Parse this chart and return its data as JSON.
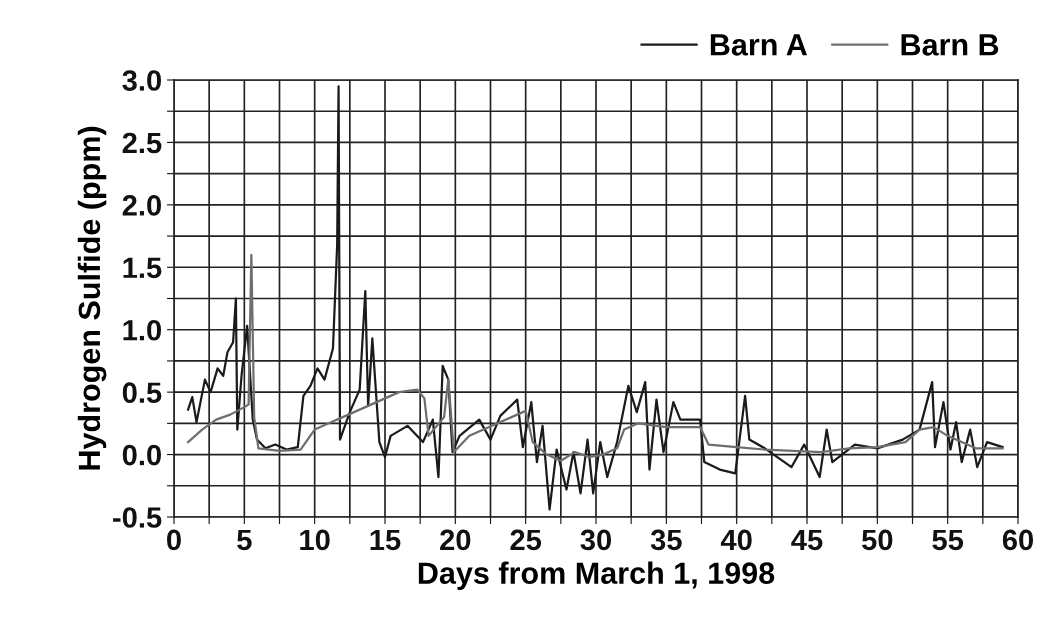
{
  "chart_data": {
    "type": "line",
    "xlabel": "Days from March 1, 1998",
    "ylabel": "Hydrogen Sulfide (ppm)",
    "xlim": [
      0,
      60
    ],
    "ylim": [
      -0.5,
      3.0
    ],
    "xticks": [
      0,
      {
        "value": 2.5,
        "label": null
      },
      5,
      {
        "value": 7.5,
        "label": null
      },
      10,
      {
        "value": 12.5,
        "label": null
      },
      15,
      {
        "value": 17.5,
        "label": null
      },
      20,
      {
        "value": 22.5,
        "label": null
      },
      25,
      {
        "value": 27.5,
        "label": null
      },
      30,
      {
        "value": 32.5,
        "label": null
      },
      35,
      {
        "value": 37.5,
        "label": null
      },
      40,
      {
        "value": 42.5,
        "label": null
      },
      45,
      {
        "value": 47.5,
        "label": null
      },
      50,
      {
        "value": 52.5,
        "label": null
      },
      55,
      {
        "value": 57.5,
        "label": null
      },
      60
    ],
    "yticks": [
      {
        "value": -0.5,
        "label": "-0.5"
      },
      {
        "value": -0.25,
        "label": null
      },
      {
        "value": 0.0,
        "label": "0.0"
      },
      {
        "value": 0.25,
        "label": null
      },
      {
        "value": 0.5,
        "label": "0.5"
      },
      {
        "value": 0.75,
        "label": null
      },
      {
        "value": 1.0,
        "label": "1.0"
      },
      {
        "value": 1.25,
        "label": null
      },
      {
        "value": 1.5,
        "label": "1.5"
      },
      {
        "value": 1.75,
        "label": null
      },
      {
        "value": 2.0,
        "label": "2.0"
      },
      {
        "value": 2.25,
        "label": null
      },
      {
        "value": 2.5,
        "label": "2.5"
      },
      {
        "value": 2.75,
        "label": null
      },
      {
        "value": 3.0,
        "label": "3.0"
      }
    ],
    "grid": true,
    "legend": "top right",
    "series": [
      {
        "name": "Barn A",
        "color": "#1a1a1a",
        "x": [
          1.0,
          1.3,
          1.6,
          2.2,
          2.6,
          3.1,
          3.5,
          3.8,
          4.2,
          4.4,
          4.5,
          4.8,
          5.2,
          5.6,
          5.9,
          6.5,
          7.2,
          8.0,
          8.8,
          9.2,
          9.7,
          10.2,
          10.7,
          11.3,
          11.6,
          11.7,
          11.8,
          12.5,
          13.2,
          13.6,
          13.8,
          14.1,
          14.6,
          15.0,
          15.4,
          16.6,
          17.7,
          18.4,
          18.8,
          19.1,
          19.5,
          19.8,
          20.3,
          21.7,
          22.5,
          23.2,
          24.4,
          24.8,
          25.4,
          25.8,
          26.2,
          26.7,
          27.2,
          27.9,
          28.4,
          28.9,
          29.4,
          29.8,
          30.3,
          30.8,
          31.5,
          32.3,
          32.9,
          33.5,
          33.8,
          34.3,
          34.8,
          35.5,
          36.0,
          37.4,
          37.7,
          38.8,
          39.9,
          40.6,
          40.9,
          42.0,
          43.9,
          44.8,
          45.9,
          46.4,
          46.8,
          48.4,
          50.0,
          51.8,
          53.0,
          53.9,
          54.1,
          54.7,
          55.2,
          55.6,
          56.0,
          56.6,
          57.1,
          57.8,
          58.9
        ],
        "values": [
          0.36,
          0.46,
          0.26,
          0.6,
          0.5,
          0.69,
          0.63,
          0.82,
          0.9,
          1.25,
          0.2,
          0.63,
          1.03,
          0.28,
          0.12,
          0.05,
          0.08,
          0.04,
          0.06,
          0.47,
          0.55,
          0.69,
          0.6,
          0.85,
          1.68,
          2.95,
          0.12,
          0.34,
          0.52,
          1.31,
          0.39,
          0.93,
          0.1,
          -0.02,
          0.15,
          0.23,
          0.1,
          0.28,
          -0.18,
          0.71,
          0.6,
          0.02,
          0.15,
          0.28,
          0.12,
          0.31,
          0.44,
          0.06,
          0.42,
          -0.06,
          0.23,
          -0.44,
          0.04,
          -0.28,
          0.02,
          -0.31,
          0.12,
          -0.31,
          0.1,
          -0.18,
          0.1,
          0.55,
          0.34,
          0.58,
          -0.12,
          0.44,
          0.02,
          0.42,
          0.28,
          0.28,
          -0.06,
          -0.12,
          -0.15,
          0.47,
          0.12,
          0.05,
          -0.1,
          0.08,
          -0.18,
          0.2,
          -0.06,
          0.08,
          0.05,
          0.12,
          0.2,
          0.58,
          0.06,
          0.42,
          0.04,
          0.26,
          -0.06,
          0.2,
          -0.1,
          0.1,
          0.06
        ]
      },
      {
        "name": "Barn B",
        "color": "#6e6e6e",
        "x": [
          1.0,
          2.0,
          3.0,
          4.0,
          5.0,
          5.3,
          5.5,
          5.7,
          6.0,
          7.5,
          9.0,
          10.0,
          11.0,
          12.0,
          13.0,
          14.0,
          15.0,
          15.4,
          16.0,
          17.3,
          17.8,
          18.1,
          19.2,
          19.5,
          19.9,
          21.0,
          22.0,
          23.0,
          24.0,
          25.0,
          25.5,
          26.5,
          27.5,
          28.5,
          29.5,
          30.5,
          31.5,
          32.0,
          33.0,
          35.0,
          37.4,
          38.0,
          40.0,
          42.0,
          44.0,
          46.0,
          48.0,
          50.0,
          52.0,
          53.0,
          54.0,
          55.0,
          56.0,
          57.0,
          58.9
        ],
        "values": [
          0.1,
          0.2,
          0.28,
          0.32,
          0.38,
          0.4,
          1.6,
          0.3,
          0.05,
          0.03,
          0.04,
          0.2,
          0.25,
          0.3,
          0.35,
          0.4,
          0.45,
          0.47,
          0.5,
          0.52,
          0.45,
          0.15,
          0.3,
          0.6,
          0.02,
          0.15,
          0.2,
          0.25,
          0.3,
          0.35,
          0.1,
          0.0,
          -0.05,
          0.02,
          -0.02,
          0.0,
          0.05,
          0.2,
          0.25,
          0.22,
          0.22,
          0.08,
          0.06,
          0.04,
          0.03,
          0.02,
          0.05,
          0.06,
          0.1,
          0.2,
          0.22,
          0.15,
          0.1,
          0.05,
          0.05
        ]
      }
    ]
  }
}
